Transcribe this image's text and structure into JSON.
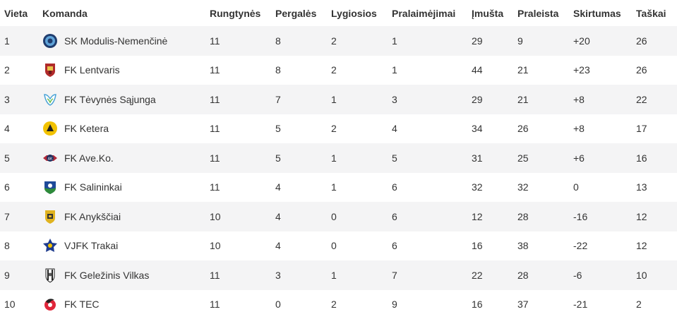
{
  "headers": {
    "place": "Vieta",
    "team": "Komanda",
    "played": "Rungtynės",
    "wins": "Pergalės",
    "draws": "Lygiosios",
    "losses": "Pralaimėjimai",
    "scored": "Įmušta",
    "conceded": "Praleista",
    "diff": "Skirtumas",
    "points": "Taškai"
  },
  "rows": [
    {
      "place": "1",
      "team": "SK Modulis-Nemenčinė",
      "logo": "modulis-logo",
      "played": "11",
      "wins": "8",
      "draws": "2",
      "losses": "1",
      "scored": "29",
      "conceded": "9",
      "diff": "+20",
      "points": "26"
    },
    {
      "place": "2",
      "team": "FK Lentvaris",
      "logo": "lentvaris-logo",
      "played": "11",
      "wins": "8",
      "draws": "2",
      "losses": "1",
      "scored": "44",
      "conceded": "21",
      "diff": "+23",
      "points": "26"
    },
    {
      "place": "3",
      "team": "FK Tėvynės Sąjunga",
      "logo": "tevynes-sajunga-logo",
      "played": "11",
      "wins": "7",
      "draws": "1",
      "losses": "3",
      "scored": "29",
      "conceded": "21",
      "diff": "+8",
      "points": "22"
    },
    {
      "place": "4",
      "team": "FK Ketera",
      "logo": "ketera-logo",
      "played": "11",
      "wins": "5",
      "draws": "2",
      "losses": "4",
      "scored": "34",
      "conceded": "26",
      "diff": "+8",
      "points": "17"
    },
    {
      "place": "5",
      "team": "FK Ave.Ko.",
      "logo": "aveko-logo",
      "played": "11",
      "wins": "5",
      "draws": "1",
      "losses": "5",
      "scored": "31",
      "conceded": "25",
      "diff": "+6",
      "points": "16"
    },
    {
      "place": "6",
      "team": "FK Salininkai",
      "logo": "salininkai-logo",
      "played": "11",
      "wins": "4",
      "draws": "1",
      "losses": "6",
      "scored": "32",
      "conceded": "32",
      "diff": "0",
      "points": "13"
    },
    {
      "place": "7",
      "team": "FK Anykščiai",
      "logo": "anyksciai-logo",
      "played": "10",
      "wins": "4",
      "draws": "0",
      "losses": "6",
      "scored": "12",
      "conceded": "28",
      "diff": "-16",
      "points": "12"
    },
    {
      "place": "8",
      "team": "VJFK Trakai",
      "logo": "trakai-logo",
      "played": "10",
      "wins": "4",
      "draws": "0",
      "losses": "6",
      "scored": "16",
      "conceded": "38",
      "diff": "-22",
      "points": "12"
    },
    {
      "place": "9",
      "team": "FK Geležinis Vilkas",
      "logo": "gelezinis-vilkas-logo",
      "played": "11",
      "wins": "3",
      "draws": "1",
      "losses": "7",
      "scored": "22",
      "conceded": "28",
      "diff": "-6",
      "points": "10"
    },
    {
      "place": "10",
      "team": "FK TEC",
      "logo": "tec-logo",
      "played": "11",
      "wins": "0",
      "draws": "2",
      "losses": "9",
      "scored": "16",
      "conceded": "37",
      "diff": "-21",
      "points": "2"
    }
  ]
}
